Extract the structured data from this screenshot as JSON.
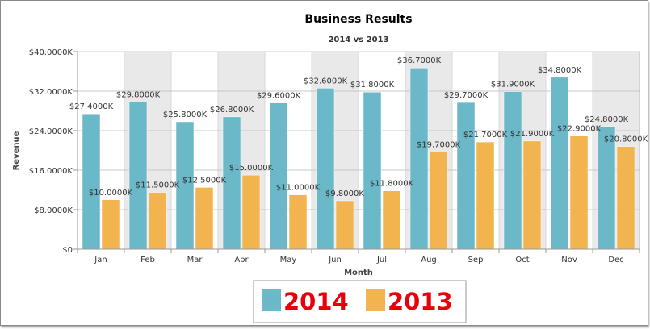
{
  "chart_data": {
    "type": "bar",
    "title": "Business Results",
    "subtitle": "2014 vs 2013",
    "xlabel": "Month",
    "ylabel": "Revenue",
    "ylim": [
      0,
      40
    ],
    "yticks": [
      "$0",
      "$8.0000K",
      "$16.0000K",
      "$24.0000K",
      "$32.0000K",
      "$40.0000K"
    ],
    "ytick_values": [
      0,
      8,
      16,
      24,
      32,
      40
    ],
    "categories": [
      "Jan",
      "Feb",
      "Mar",
      "Apr",
      "May",
      "Jun",
      "Jul",
      "Aug",
      "Sep",
      "Oct",
      "Nov",
      "Dec"
    ],
    "series": [
      {
        "name": "2014",
        "color": "#6bb8c9",
        "values": [
          27.4,
          29.8,
          25.8,
          26.8,
          29.6,
          32.6,
          31.8,
          36.7,
          29.7,
          31.9,
          34.8,
          24.8
        ],
        "labels": [
          "$27.4000K",
          "$29.8000K",
          "$25.8000K",
          "$26.8000K",
          "$29.6000K",
          "$32.6000K",
          "$31.8000K",
          "$36.7000K",
          "$29.7000K",
          "$31.9000K",
          "$34.8000K",
          "$24.8000K"
        ]
      },
      {
        "name": "2013",
        "color": "#f2b44f",
        "values": [
          10.0,
          11.5,
          12.5,
          15.0,
          11.0,
          9.8,
          11.8,
          19.7,
          21.7,
          21.9,
          22.9,
          20.8
        ],
        "labels": [
          "$10.0000K",
          "$11.5000K",
          "$12.5000K",
          "$15.0000K",
          "$11.0000K",
          "$9.8000K",
          "$11.8000K",
          "$19.7000K",
          "$21.7000K",
          "$21.9000K",
          "$22.9000K",
          "$20.8000K"
        ]
      }
    ],
    "grid": true,
    "legend": "bottom-center"
  }
}
